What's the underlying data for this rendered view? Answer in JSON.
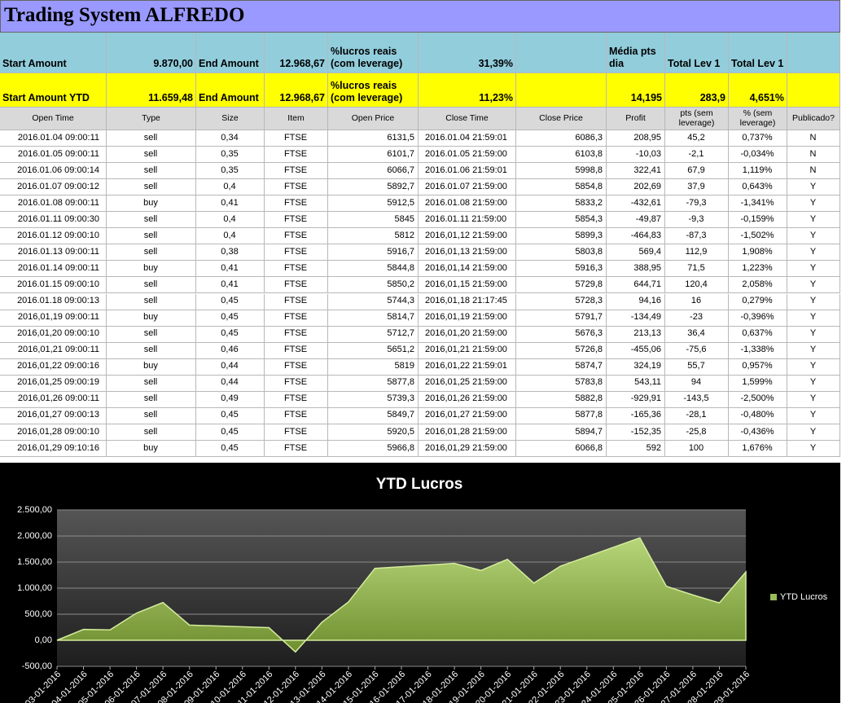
{
  "header": {
    "title": "Trading System ALFREDO"
  },
  "summary": [
    [
      "Start Amount",
      "9.870,00",
      "End Amount",
      "12.968,67",
      "%lucros reais (com leverage)",
      "31,39%",
      "Média pts dia",
      "Total Lev 1",
      "Total Lev 1"
    ],
    [
      "Start Amount YTD",
      "11.659,48",
      "End Amount",
      "12.968,67",
      "%lucros reais (com leverage)",
      "11,23%",
      "14,195",
      "283,9",
      "4,651%"
    ]
  ],
  "table": {
    "columns": [
      "Open Time",
      "Type",
      "Size",
      "Item",
      "Open Price",
      "Close Time",
      "Close Price",
      "Profit",
      "pts (sem leverage)",
      "% (sem leverage)",
      "Publicado?"
    ],
    "rows": [
      [
        "2016.01.04 09:00:11",
        "sell",
        "0,34",
        "FTSE",
        "6131,5",
        "2016.01.04 21:59:01",
        "6086,3",
        "208,95",
        "45,2",
        "0,737%",
        "N"
      ],
      [
        "2016.01.05 09:00:11",
        "sell",
        "0,35",
        "FTSE",
        "6101,7",
        "2016.01.05 21:59:00",
        "6103,8",
        "-10,03",
        "-2,1",
        "-0,034%",
        "N"
      ],
      [
        "2016.01.06 09:00:14",
        "sell",
        "0,35",
        "FTSE",
        "6066,7",
        "2016.01.06 21:59:01",
        "5998,8",
        "322,41",
        "67,9",
        "1,119%",
        "N"
      ],
      [
        "2016.01.07 09:00:12",
        "sell",
        "0,4",
        "FTSE",
        "5892,7",
        "2016.01.07 21:59:00",
        "5854,8",
        "202,69",
        "37,9",
        "0,643%",
        "Y"
      ],
      [
        "2016.01.08 09:00:11",
        "buy",
        "0,41",
        "FTSE",
        "5912,5",
        "2016.01.08 21:59:00",
        "5833,2",
        "-432,61",
        "-79,3",
        "-1,341%",
        "Y"
      ],
      [
        "2016.01.11 09:00:30",
        "sell",
        "0,4",
        "FTSE",
        "5845",
        "2016.01.11 21:59:00",
        "5854,3",
        "-49,87",
        "-9,3",
        "-0,159%",
        "Y"
      ],
      [
        "2016.01.12 09:00:10",
        "sell",
        "0,4",
        "FTSE",
        "5812",
        "2016,01,12 21:59:00",
        "5899,3",
        "-464,83",
        "-87,3",
        "-1,502%",
        "Y"
      ],
      [
        "2016.01.13 09:00:11",
        "sell",
        "0,38",
        "FTSE",
        "5916,7",
        "2016,01,13 21:59:00",
        "5803,8",
        "569,4",
        "112,9",
        "1,908%",
        "Y"
      ],
      [
        "2016.01.14 09:00:11",
        "buy",
        "0,41",
        "FTSE",
        "5844,8",
        "2016,01,14 21:59:00",
        "5916,3",
        "388,95",
        "71,5",
        "1,223%",
        "Y"
      ],
      [
        "2016.01.15 09:00:10",
        "sell",
        "0,41",
        "FTSE",
        "5850,2",
        "2016,01,15 21:59:00",
        "5729,8",
        "644,71",
        "120,4",
        "2,058%",
        "Y"
      ],
      [
        "2016.01.18 09:00:13",
        "sell",
        "0,45",
        "FTSE",
        "5744,3",
        "2016,01,18 21:17:45",
        "5728,3",
        "94,16",
        "16",
        "0,279%",
        "Y"
      ],
      [
        "2016,01,19 09:00:11",
        "buy",
        "0,45",
        "FTSE",
        "5814,7",
        "2016,01,19 21:59:00",
        "5791,7",
        "-134,49",
        "-23",
        "-0,396%",
        "Y"
      ],
      [
        "2016,01,20 09:00:10",
        "sell",
        "0,45",
        "FTSE",
        "5712,7",
        "2016,01,20 21:59:00",
        "5676,3",
        "213,13",
        "36,4",
        "0,637%",
        "Y"
      ],
      [
        "2016,01,21 09:00:11",
        "sell",
        "0,46",
        "FTSE",
        "5651,2",
        "2016,01,21 21:59:00",
        "5726,8",
        "-455,06",
        "-75,6",
        "-1,338%",
        "Y"
      ],
      [
        "2016,01,22 09:00:16",
        "buy",
        "0,44",
        "FTSE",
        "5819",
        "2016,01,22 21:59:01",
        "5874,7",
        "324,19",
        "55,7",
        "0,957%",
        "Y"
      ],
      [
        "2016,01,25 09:00:19",
        "sell",
        "0,44",
        "FTSE",
        "5877,8",
        "2016,01,25 21:59:00",
        "5783,8",
        "543,11",
        "94",
        "1,599%",
        "Y"
      ],
      [
        "2016,01,26 09:00:11",
        "sell",
        "0,49",
        "FTSE",
        "5739,3",
        "2016,01,26 21:59:00",
        "5882,8",
        "-929,91",
        "-143,5",
        "-2,500%",
        "Y"
      ],
      [
        "2016,01,27 09:00:13",
        "sell",
        "0,45",
        "FTSE",
        "5849,7",
        "2016,01,27 21:59:00",
        "5877,8",
        "-165,36",
        "-28,1",
        "-0,480%",
        "Y"
      ],
      [
        "2016,01,28 09:00:10",
        "sell",
        "0,45",
        "FTSE",
        "5920,5",
        "2016,01,28 21:59:00",
        "5894,7",
        "-152,35",
        "-25,8",
        "-0,436%",
        "Y"
      ],
      [
        "2016,01,29 09:10:16",
        "buy",
        "0,45",
        "FTSE",
        "5966,8",
        "2016,01,29 21:59:00",
        "6066,8",
        "592",
        "100",
        "1,676%",
        "Y"
      ]
    ]
  },
  "chart_data": {
    "type": "area",
    "title": "YTD Lucros",
    "x": [
      "03-01-2016",
      "04-01-2016",
      "05-01-2016",
      "06-01-2016",
      "07-01-2016",
      "08-01-2016",
      "11-01-2016",
      "12-01-2016",
      "13-01-2016",
      "14-01-2016",
      "15-01-2016",
      "18-01-2016",
      "19-01-2016",
      "20-01-2016",
      "21-01-2016",
      "22-01-2016",
      "25-01-2016",
      "26-01-2016",
      "27-01-2016",
      "28-01-2016",
      "29-01-2016"
    ],
    "series": [
      {
        "name": "YTD Lucros",
        "color": "#9bbb59",
        "values": [
          0,
          208.95,
          198.92,
          521.33,
          724.02,
          291.41,
          241.54,
          -223.29,
          346.11,
          735.06,
          1379.77,
          1473.93,
          1339.44,
          1552.57,
          1097.51,
          1421.7,
          1964.81,
          1034.9,
          869.54,
          717.19,
          1309.19
        ]
      }
    ],
    "xticks": [
      "03-01-2016",
      "04-01-2016",
      "05-01-2016",
      "06-01-2016",
      "07-01-2016",
      "08-01-2016",
      "09-01-2016",
      "10-01-2016",
      "11-01-2016",
      "12-01-2016",
      "13-01-2016",
      "14-01-2016",
      "15-01-2016",
      "16-01-2016",
      "17-01-2016",
      "18-01-2016",
      "19-01-2016",
      "20-01-2016",
      "21-01-2016",
      "22-01-2016",
      "23-01-2016",
      "24-01-2016",
      "25-01-2016",
      "26-01-2016",
      "27-01-2016",
      "28-01-2016",
      "29-01-2016"
    ],
    "ylim": [
      -500,
      2500
    ],
    "yticks": [
      {
        "value": -500,
        "label": "-500,00"
      },
      {
        "value": 0,
        "label": "0,00"
      },
      {
        "value": 500,
        "label": "500,00"
      },
      {
        "value": 1000,
        "label": "1.000,00"
      },
      {
        "value": 1500,
        "label": "1.500,00"
      },
      {
        "value": 2000,
        "label": "2.000,00"
      },
      {
        "value": 2500,
        "label": "2.500,00"
      }
    ],
    "grid": true,
    "legend": "right"
  }
}
